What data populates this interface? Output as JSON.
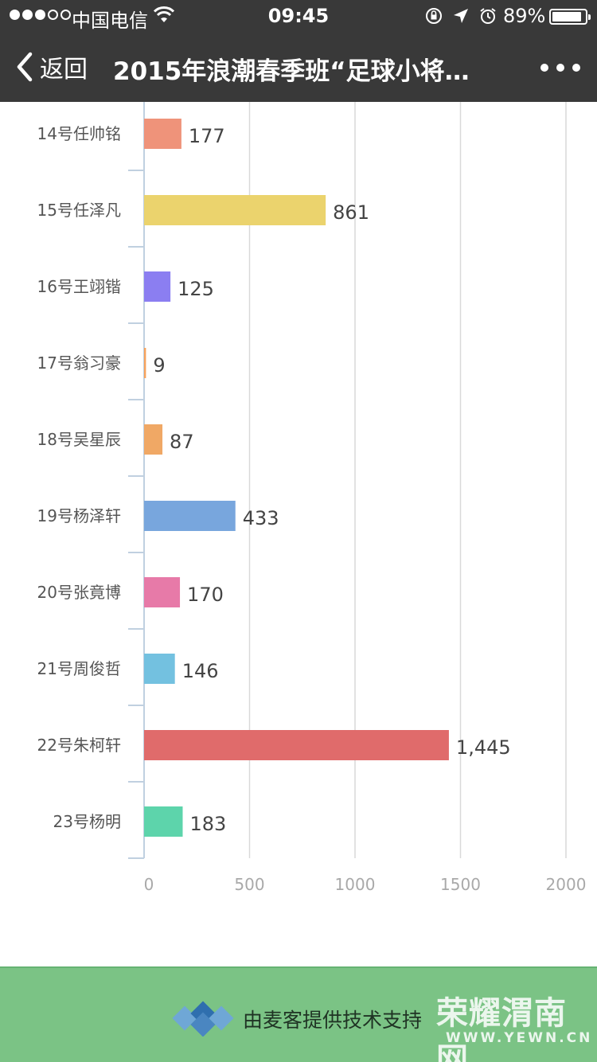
{
  "status_bar": {
    "carrier": "中国电信",
    "time": "09:45",
    "battery_percent": "89%",
    "battery_level": 0.89,
    "signal_strength": 3,
    "signal_max": 5
  },
  "nav": {
    "back_label": "返回",
    "title": "2015年浪潮春季班“足球小将…"
  },
  "chart_data": {
    "type": "bar",
    "orientation": "horizontal",
    "categories": [
      "14号任帅铭",
      "15号任泽凡",
      "16号王翊锴",
      "17号翁习豪",
      "18号吴星辰",
      "19号杨泽轩",
      "20号张竟博",
      "21号周俊哲",
      "22号朱柯轩",
      "23号杨明"
    ],
    "values": [
      177,
      861,
      125,
      9,
      87,
      433,
      170,
      146,
      1445,
      183
    ],
    "value_labels": [
      "177",
      "861",
      "125",
      "9",
      "87",
      "433",
      "170",
      "146",
      "1,445",
      "183"
    ],
    "colors": [
      "#ef937a",
      "#ebd36d",
      "#8b7ef1",
      "#f7a35c",
      "#f0a865",
      "#78a6dd",
      "#e77aa8",
      "#73c1e0",
      "#e06b6b",
      "#5dd4ab"
    ],
    "xticks": [
      0,
      500,
      1000,
      1500,
      2000
    ],
    "xtick_labels": [
      "0",
      "500",
      "1000",
      "1500",
      "2000"
    ],
    "xlim": [
      0,
      2000
    ],
    "grid": true,
    "legend": false,
    "title": "",
    "xlabel": "",
    "ylabel": ""
  },
  "footer": {
    "support_text": "由麦客提供技术支持",
    "watermark_title": "荣耀渭南网",
    "watermark_url": "WWW.YEWN.CN",
    "background_color": "#7bc385"
  }
}
